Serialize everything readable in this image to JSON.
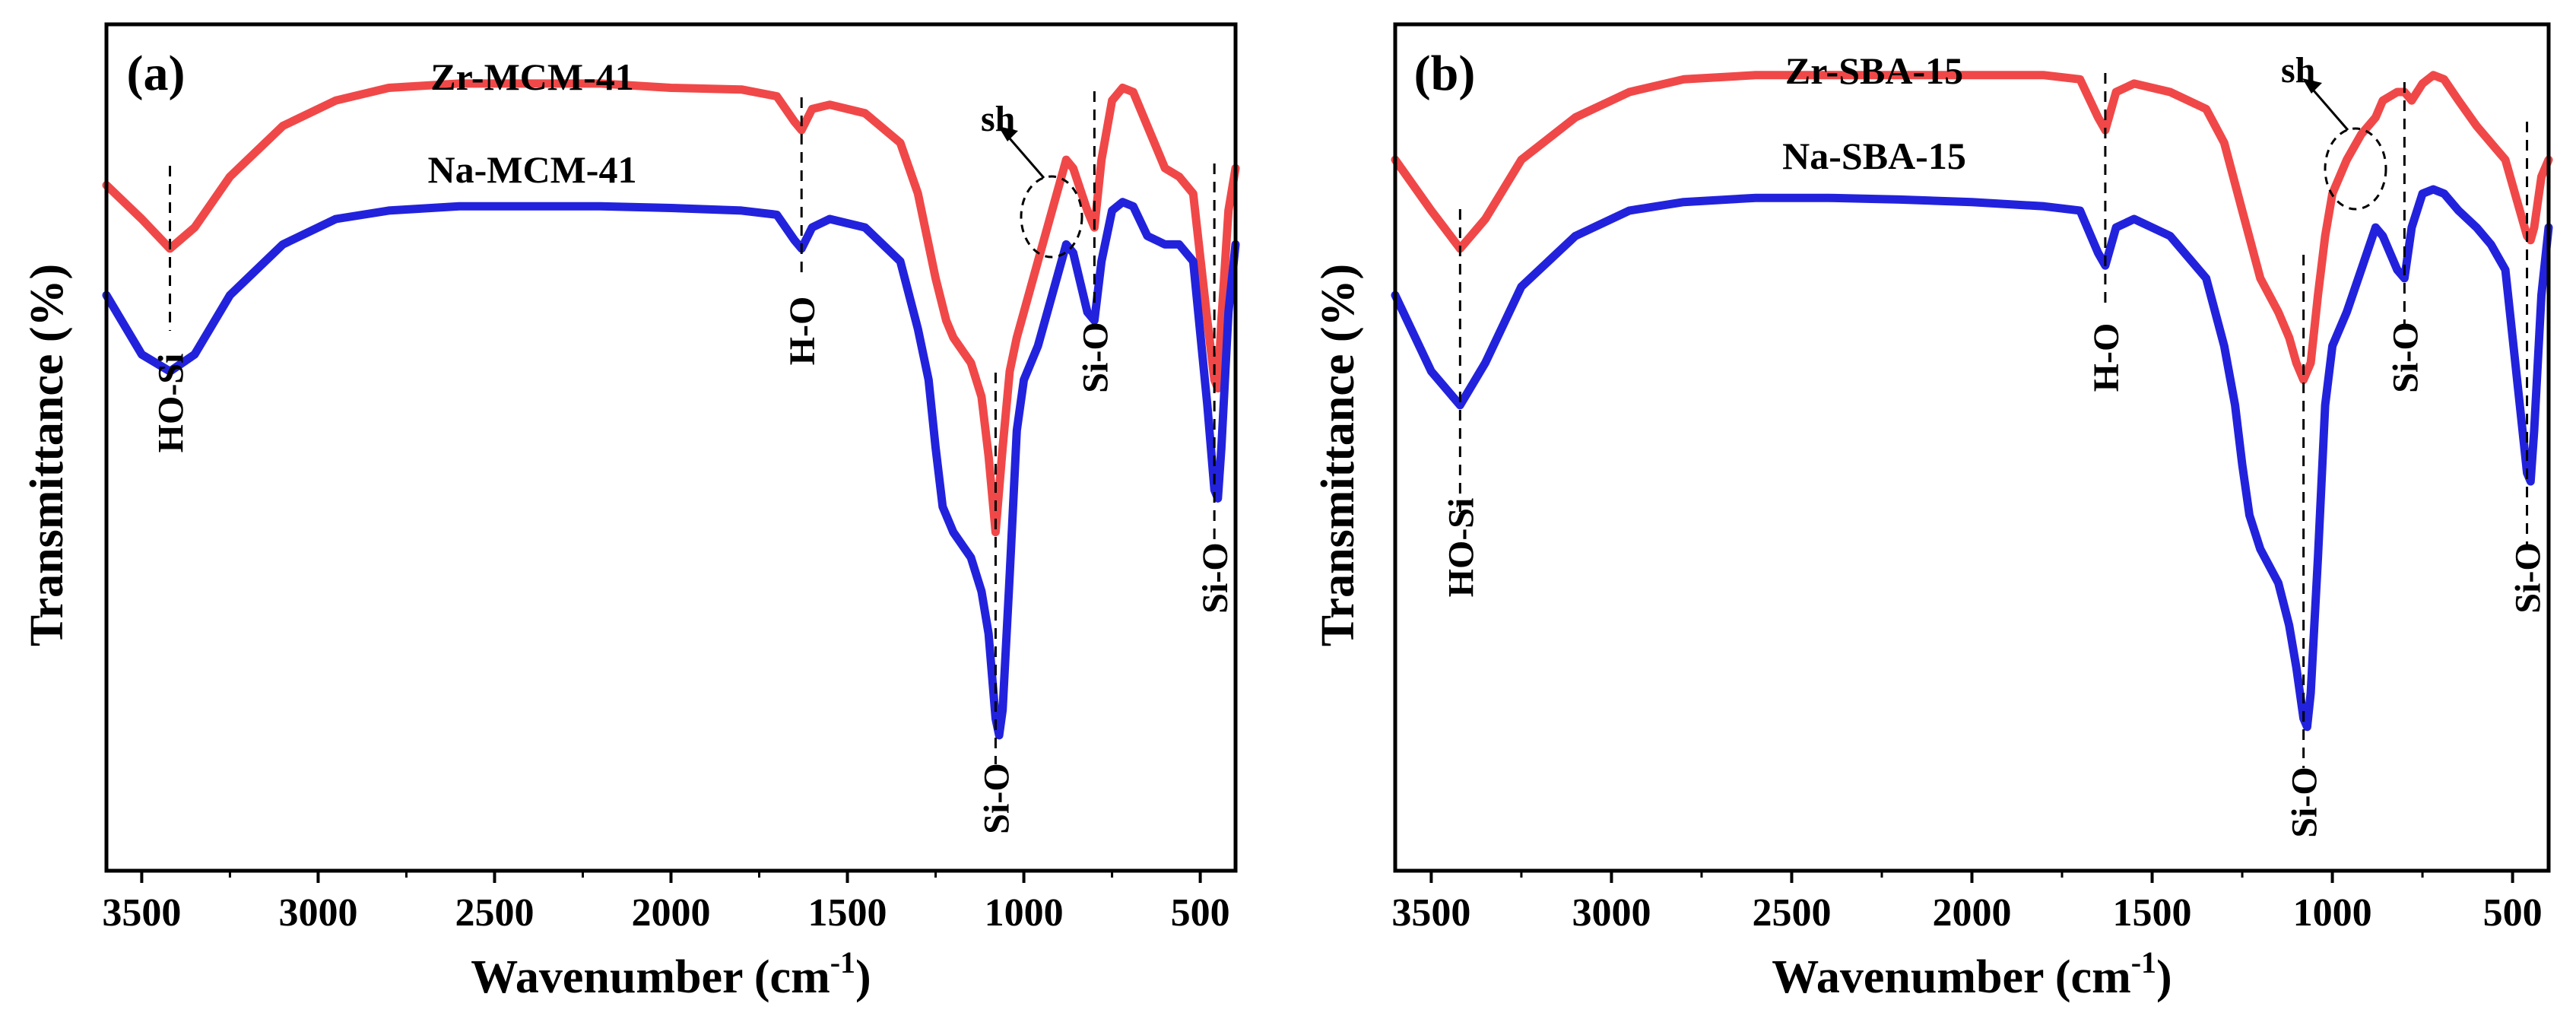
{
  "figure": {
    "panels": [
      "a",
      "b"
    ]
  },
  "chart_data": [
    {
      "type": "line",
      "panel_label": "(a)",
      "xlabel": "Wavenumber (cm",
      "xlabel_sup": "-1",
      "xlabel_close": ")",
      "ylabel": "Transmittance (%)",
      "xlim": [
        3600,
        400
      ],
      "x_reversed": true,
      "xticks": [
        3500,
        3000,
        2500,
        2000,
        1500,
        1000,
        500
      ],
      "ylim": [
        0,
        100
      ],
      "y_ticks_shown": false,
      "series": [
        {
          "name": "Zr-MCM-41",
          "color": "#f04848",
          "x": [
            3600,
            3500,
            3420,
            3350,
            3250,
            3100,
            2950,
            2800,
            2600,
            2400,
            2200,
            2000,
            1800,
            1700,
            1650,
            1630,
            1600,
            1550,
            1450,
            1350,
            1300,
            1250,
            1220,
            1200,
            1150,
            1120,
            1100,
            1080,
            1060,
            1040,
            1020,
            1000,
            960,
            920,
            880,
            860,
            820,
            800,
            780,
            750,
            720,
            690,
            650,
            600,
            560,
            520,
            480,
            460,
            450,
            440,
            420,
            400
          ],
          "values": [
            81,
            77,
            73.5,
            76,
            82,
            88,
            91,
            92.5,
            93,
            93,
            93,
            92.5,
            92.3,
            91.5,
            88.5,
            87.5,
            90,
            90.5,
            89.5,
            86,
            80,
            70,
            65,
            63,
            60,
            56,
            49,
            40,
            50,
            59,
            63,
            66,
            72,
            78,
            84,
            83,
            78,
            76,
            84,
            91,
            92.5,
            92,
            88,
            83,
            82,
            80,
            65,
            58,
            57,
            65,
            78,
            83
          ]
        },
        {
          "name": "Na-MCM-41",
          "color": "#2222dd",
          "x": [
            3600,
            3500,
            3420,
            3350,
            3250,
            3100,
            2950,
            2800,
            2600,
            2400,
            2200,
            2000,
            1800,
            1700,
            1650,
            1630,
            1600,
            1550,
            1450,
            1350,
            1300,
            1270,
            1250,
            1230,
            1200,
            1150,
            1120,
            1100,
            1080,
            1070,
            1060,
            1040,
            1020,
            1000,
            960,
            920,
            880,
            860,
            820,
            800,
            780,
            750,
            720,
            690,
            650,
            600,
            560,
            520,
            480,
            460,
            450,
            440,
            420,
            400
          ],
          "values": [
            68,
            61,
            59,
            61,
            68,
            74,
            77,
            78,
            78.5,
            78.5,
            78.5,
            78.3,
            78,
            77.5,
            74.5,
            73.5,
            76,
            77,
            76,
            72,
            64,
            58,
            50,
            43,
            40,
            37,
            33,
            28,
            18,
            16,
            19,
            35,
            52,
            58,
            62,
            68,
            74,
            73,
            66,
            65,
            72,
            78,
            79,
            78.5,
            75,
            74,
            74,
            72,
            55,
            45,
            44,
            50,
            66,
            74
          ]
        }
      ],
      "annotations": [
        {
          "label": "HO-Si",
          "x": 3420
        },
        {
          "label": "H-O",
          "x": 1630
        },
        {
          "label": "Si-O",
          "x": 1080
        },
        {
          "label": "Si-O",
          "x": 800
        },
        {
          "label": "Si-O",
          "x": 460
        }
      ],
      "shoulder_label": "sh"
    },
    {
      "type": "line",
      "panel_label": "(b)",
      "xlabel": "Wavenumber (cm",
      "xlabel_sup": "-1",
      "xlabel_close": ")",
      "ylabel": "Transmittance (%)",
      "xlim": [
        3600,
        400
      ],
      "x_reversed": true,
      "xticks": [
        3500,
        3000,
        2500,
        2000,
        1500,
        1000,
        500
      ],
      "ylim": [
        0,
        100
      ],
      "y_ticks_shown": false,
      "series": [
        {
          "name": "Zr-SBA-15",
          "color": "#f04848",
          "x": [
            3600,
            3500,
            3420,
            3350,
            3250,
            3100,
            2950,
            2800,
            2600,
            2400,
            2200,
            2000,
            1800,
            1700,
            1650,
            1630,
            1600,
            1550,
            1450,
            1350,
            1300,
            1250,
            1200,
            1150,
            1120,
            1100,
            1080,
            1060,
            1040,
            1020,
            1000,
            960,
            920,
            880,
            860,
            820,
            800,
            780,
            750,
            720,
            690,
            650,
            600,
            560,
            520,
            480,
            460,
            450,
            440,
            420,
            400
          ],
          "values": [
            84,
            78,
            73.5,
            77,
            84,
            89,
            92,
            93.5,
            94,
            94,
            94,
            94,
            94,
            93.5,
            89,
            87.5,
            92,
            93,
            92,
            90,
            86,
            78,
            70,
            66,
            63,
            60,
            58,
            60,
            68,
            75,
            80,
            84,
            87,
            89,
            91,
            92,
            92,
            91,
            93,
            94,
            93.5,
            91,
            88,
            86,
            84,
            78,
            75,
            74.5,
            76,
            82,
            84
          ]
        },
        {
          "name": "Na-SBA-15",
          "color": "#2222dd",
          "x": [
            3600,
            3500,
            3420,
            3350,
            3250,
            3100,
            2950,
            2800,
            2600,
            2400,
            2200,
            2000,
            1800,
            1700,
            1650,
            1630,
            1600,
            1550,
            1450,
            1350,
            1300,
            1270,
            1250,
            1230,
            1200,
            1150,
            1120,
            1100,
            1080,
            1070,
            1060,
            1040,
            1020,
            1000,
            960,
            920,
            880,
            860,
            820,
            800,
            780,
            750,
            720,
            690,
            650,
            600,
            560,
            520,
            480,
            460,
            450,
            440,
            420,
            400
          ],
          "values": [
            68,
            59,
            55,
            60,
            69,
            75,
            78,
            79,
            79.5,
            79.5,
            79.3,
            79,
            78.5,
            78,
            73,
            71.5,
            76,
            77,
            75,
            70,
            62,
            55,
            48,
            42,
            38,
            34,
            29,
            24,
            18,
            17,
            21,
            37,
            55,
            62,
            66,
            71,
            76,
            75,
            71,
            70,
            76,
            80,
            80.5,
            80,
            78,
            76,
            74,
            71,
            55,
            47,
            46,
            52,
            68,
            76
          ]
        }
      ],
      "annotations": [
        {
          "label": "HO-Si",
          "x": 3420
        },
        {
          "label": "H-O",
          "x": 1630
        },
        {
          "label": "Si-O",
          "x": 1080
        },
        {
          "label": "Si-O",
          "x": 800
        },
        {
          "label": "Si-O",
          "x": 460
        }
      ],
      "shoulder_label": "sh"
    }
  ]
}
